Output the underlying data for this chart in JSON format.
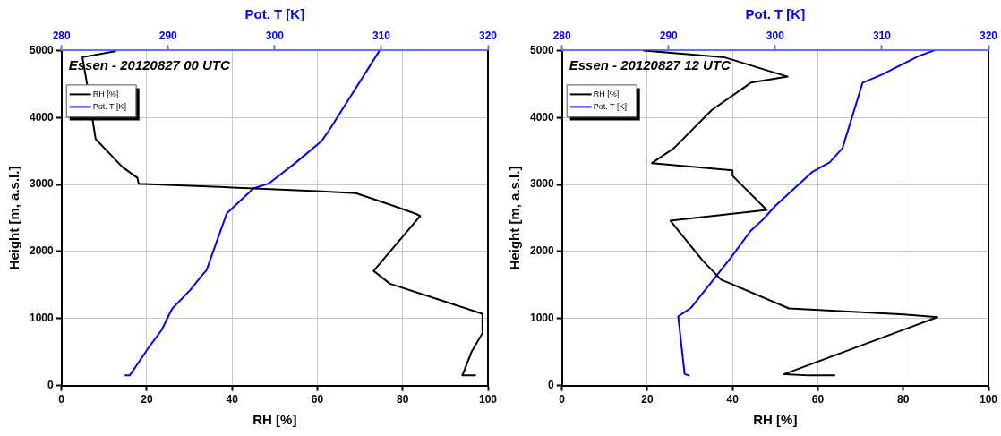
{
  "chart_data": [
    {
      "type": "line",
      "title": "Essen - 20120827 00 UTC",
      "xlabel": "RH [%]",
      "x2label": "Pot. T [K]",
      "ylabel": "Height [m, a.s.l.]",
      "xlim": [
        0,
        100
      ],
      "xticks": [
        0,
        20,
        40,
        60,
        80,
        100
      ],
      "x2lim": [
        280,
        320
      ],
      "x2ticks": [
        280,
        290,
        300,
        310,
        320
      ],
      "ylim": [
        0,
        5000
      ],
      "yticks": [
        0,
        1000,
        2000,
        3000,
        4000,
        5000
      ],
      "grid": true,
      "legend": "top left",
      "marker": "none",
      "line_style": "solid",
      "series": [
        {
          "name": "RH [%]",
          "color": "#000000",
          "x": [
            97,
            94,
            96.2,
            98.7,
            98.7,
            77,
            73.2,
            84.1,
            83.2,
            77,
            69,
            60,
            38.3,
            18.1,
            17.8,
            14.3,
            8,
            7.2,
            6.1,
            4.9,
            12.6
          ],
          "values": [
            150,
            150,
            510,
            780,
            1070,
            1520,
            1710,
            2530,
            2560,
            2700,
            2870,
            2900,
            2960,
            3010,
            3100,
            3260,
            3680,
            4000,
            4460,
            4900,
            4990
          ]
        },
        {
          "name": "Pot. T [K]",
          "color": "#0000ff",
          "axis": "x2",
          "x": [
            286.0,
            286.4,
            288.1,
            289.4,
            290.1,
            290.4,
            292.1,
            293.2,
            293.6,
            295.5,
            298.0,
            299.5,
            302.0,
            304.4,
            305.1,
            309.8
          ],
          "values": [
            150,
            150,
            550,
            830,
            1060,
            1150,
            1430,
            1650,
            1720,
            2570,
            2940,
            3020,
            3330,
            3650,
            3810,
            4990
          ]
        }
      ]
    },
    {
      "type": "line",
      "title": "Essen - 20120827 12 UTC",
      "xlabel": "RH [%]",
      "x2label": "Pot. T [K]",
      "ylabel": "Height [m, a.s.l.]",
      "xlim": [
        0,
        100
      ],
      "xticks": [
        0,
        20,
        40,
        60,
        80,
        100
      ],
      "x2lim": [
        280,
        320
      ],
      "x2ticks": [
        280,
        290,
        300,
        310,
        320
      ],
      "ylim": [
        0,
        5000
      ],
      "yticks": [
        0,
        1000,
        2000,
        3000,
        4000,
        5000
      ],
      "grid": true,
      "legend": "top left",
      "marker": "none",
      "line_style": "solid",
      "series": [
        {
          "name": "RH [%]",
          "color": "#000000",
          "x": [
            63.9,
            58,
            52.1,
            88,
            80.2,
            53.2,
            39.2,
            37.3,
            32.9,
            25.4,
            48,
            40,
            40,
            21.1,
            26.2,
            35.1,
            44.3,
            52.9,
            38,
            19.2
          ],
          "values": [
            150,
            150,
            170,
            1020,
            1060,
            1150,
            1530,
            1580,
            1870,
            2460,
            2620,
            3130,
            3210,
            3320,
            3540,
            4110,
            4520,
            4610,
            4900,
            5000
          ]
        },
        {
          "name": "Pot. T [K]",
          "color": "#0000ff",
          "axis": "x2",
          "x": [
            291.9,
            291.5,
            290.9,
            292.1,
            294.0,
            295.8,
            297.7,
            298.8,
            300.0,
            303.5,
            305.1,
            306.3,
            308.2,
            310.0,
            313.5,
            314.9
          ],
          "values": [
            150,
            170,
            1030,
            1160,
            1540,
            1900,
            2310,
            2470,
            2680,
            3190,
            3330,
            3540,
            4520,
            4640,
            4920,
            5000
          ]
        }
      ]
    }
  ]
}
